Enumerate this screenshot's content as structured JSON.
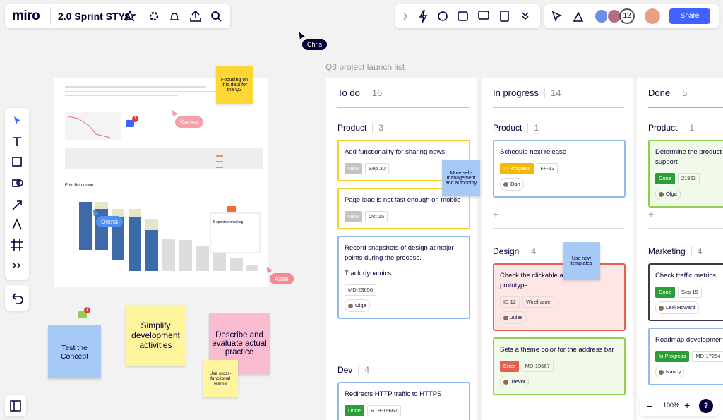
{
  "topbar": {
    "logo": "miro",
    "board_name": "2.0 Sprint STYA"
  },
  "collaborators": {
    "count": "12",
    "share": "Share"
  },
  "cursors": [
    {
      "name": "Chris",
      "color": "#050038"
    },
    {
      "name": "Karina",
      "color": "#f59fa8"
    },
    {
      "name": "Olena",
      "color": "#4f8ff0"
    },
    {
      "name": "Alise",
      "color": "#f28a94"
    }
  ],
  "embedded": {
    "title": "Epic Burndown",
    "note": "5 sprints remaining",
    "badge": "1"
  },
  "comment_badge": "1",
  "board": {
    "title": "Q3 project launch list",
    "columns": [
      {
        "name": "To do",
        "count": 16,
        "groups": [
          {
            "name": "Product",
            "count": 3,
            "cards": [
              {
                "title": "Add functionality for sharing news",
                "color": "#f5d128",
                "tags": [
                  {
                    "text": "New",
                    "fill": "#c3c3c3"
                  },
                  {
                    "text": "Sep 30"
                  }
                ]
              },
              {
                "title": "Page load is not fast enough on mobile",
                "color": "#f5d128",
                "tags": [
                  {
                    "text": "New",
                    "fill": "#c3c3c3"
                  },
                  {
                    "text": "Oct 15"
                  }
                ]
              },
              {
                "title": "Record snapshots of design at major points during the process.",
                "body": "Track dynamics.",
                "color": "#8fbbef",
                "tags": [
                  {
                    "text": "MD-23656"
                  }
                ],
                "assignee": "Olga"
              }
            ]
          },
          {
            "name": "Dev",
            "count": 4,
            "cards": [
              {
                "title": "Redirects HTTP traffic to HTTPS",
                "color": "#8fbbef",
                "tags": [
                  {
                    "text": "Done",
                    "fill": "#2d9d3a"
                  },
                  {
                    "text": "RTB-19667"
                  }
                ]
              }
            ]
          }
        ]
      },
      {
        "name": "In progress",
        "count": 14,
        "groups": [
          {
            "name": "Product",
            "count": 1,
            "cards": [
              {
                "title": "Schedule next release",
                "color": "#8fbbef",
                "tags": [
                  {
                    "text": "In Progress",
                    "fill": "#f5b700"
                  },
                  {
                    "text": "FF-13"
                  }
                ],
                "assignee": "Dan"
              }
            ]
          },
          {
            "name": "Design",
            "count": 4,
            "cards": [
              {
                "title": "Check the clickable area of the prototype",
                "color": "#e5604e",
                "background": "#fde6e3",
                "tags": [
                  {
                    "text": "ID 12"
                  },
                  {
                    "text": "Wireframe"
                  }
                ],
                "assignee": "Jules"
              },
              {
                "title": "Sets a theme color for the address bar",
                "color": "#8fd14f",
                "background": "#f1fae9",
                "tags": [
                  {
                    "text": "Error",
                    "fill": "#e5604e"
                  },
                  {
                    "text": "MD-19667"
                  }
                ],
                "assignee": "Trevor"
              }
            ]
          }
        ]
      },
      {
        "name": "Done",
        "count": 5,
        "groups": [
          {
            "name": "Product",
            "count": 1,
            "cards": [
              {
                "title": "Determine the product customer support",
                "color": "#8fd14f",
                "background": "#f1fae9",
                "tags": [
                  {
                    "text": "Done",
                    "fill": "#2d9d3a"
                  },
                  {
                    "text": "21963"
                  }
                ],
                "assignee": "Olga"
              }
            ]
          },
          {
            "name": "Marketing",
            "count": 4,
            "cards": [
              {
                "title": "Check traffic metrics",
                "color": "#3a3a4a",
                "tags": [
                  {
                    "text": "Done",
                    "fill": "#2d9d3a"
                  },
                  {
                    "text": "Sep 15"
                  }
                ],
                "assignee": "Lexi Howard"
              },
              {
                "title": "Roadmap development",
                "color": "#8fbbef",
                "tags": [
                  {
                    "text": "In Progress",
                    "fill": "#2d9d3a"
                  },
                  {
                    "text": "MD-17254"
                  }
                ],
                "assignee": "Nancy"
              }
            ]
          }
        ]
      }
    ]
  },
  "stickies": [
    {
      "text": "Focusing on this data for the Q3",
      "color": "#fdd835"
    },
    {
      "text": "More self-management and autonomy",
      "color": "#a7c9f5"
    },
    {
      "text": "Use new templates",
      "color": "#a7c9f5"
    },
    {
      "text": "Test the Concept",
      "color": "#a7c9f5"
    },
    {
      "text": "Simplify development activities",
      "color": "#fff59d"
    },
    {
      "text": "Describe and evaluate actual practice",
      "color": "#f8bbd0"
    },
    {
      "text": "Use cross-functional teams",
      "color": "#fff59d"
    }
  ],
  "zoom": {
    "level": "100%",
    "help": "?"
  }
}
